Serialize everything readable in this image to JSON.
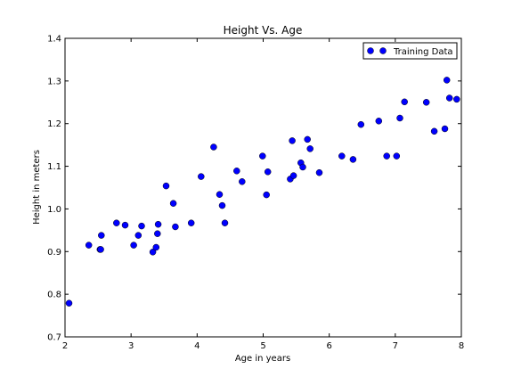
{
  "chart_data": {
    "type": "scatter",
    "title": "Height Vs. Age",
    "xlabel": "Age in years",
    "ylabel": "Height in meters",
    "xlim": [
      2,
      8
    ],
    "ylim": [
      0.7,
      1.4
    ],
    "xticks": [
      "2",
      "3",
      "4",
      "5",
      "6",
      "7",
      "8"
    ],
    "yticks": [
      "0.7",
      "0.8",
      "0.9",
      "1.0",
      "1.1",
      "1.2",
      "1.3",
      "1.4"
    ],
    "legend": {
      "label": "Training Data",
      "position": "top-right"
    },
    "marker_color": "#0000ff",
    "series": [
      {
        "name": "Training Data",
        "points": [
          [
            2.06,
            0.779
          ],
          [
            2.36,
            0.915
          ],
          [
            2.53,
            0.905
          ],
          [
            2.54,
            0.905
          ],
          [
            2.55,
            0.938
          ],
          [
            2.78,
            0.967
          ],
          [
            2.91,
            0.962
          ],
          [
            3.04,
            0.915
          ],
          [
            3.11,
            0.938
          ],
          [
            3.16,
            0.96
          ],
          [
            3.33,
            0.899
          ],
          [
            3.38,
            0.91
          ],
          [
            3.4,
            0.942
          ],
          [
            3.41,
            0.964
          ],
          [
            3.53,
            1.054
          ],
          [
            3.64,
            1.013
          ],
          [
            3.67,
            0.958
          ],
          [
            3.91,
            0.967
          ],
          [
            4.06,
            1.076
          ],
          [
            4.25,
            1.145
          ],
          [
            4.34,
            1.034
          ],
          [
            4.38,
            1.008
          ],
          [
            4.42,
            0.967
          ],
          [
            4.6,
            1.089
          ],
          [
            4.68,
            1.064
          ],
          [
            4.99,
            1.124
          ],
          [
            5.05,
            1.033
          ],
          [
            5.07,
            1.087
          ],
          [
            5.41,
            1.07
          ],
          [
            5.44,
            1.16
          ],
          [
            5.46,
            1.078
          ],
          [
            5.57,
            1.108
          ],
          [
            5.6,
            1.098
          ],
          [
            5.67,
            1.163
          ],
          [
            5.71,
            1.141
          ],
          [
            5.85,
            1.085
          ],
          [
            6.19,
            1.124
          ],
          [
            6.36,
            1.116
          ],
          [
            6.48,
            1.198
          ],
          [
            6.75,
            1.206
          ],
          [
            6.87,
            1.124
          ],
          [
            7.02,
            1.124
          ],
          [
            7.07,
            1.213
          ],
          [
            7.14,
            1.251
          ],
          [
            7.47,
            1.25
          ],
          [
            7.59,
            1.182
          ],
          [
            7.75,
            1.188
          ],
          [
            7.78,
            1.302
          ],
          [
            7.82,
            1.26
          ],
          [
            7.93,
            1.257
          ]
        ]
      }
    ]
  }
}
